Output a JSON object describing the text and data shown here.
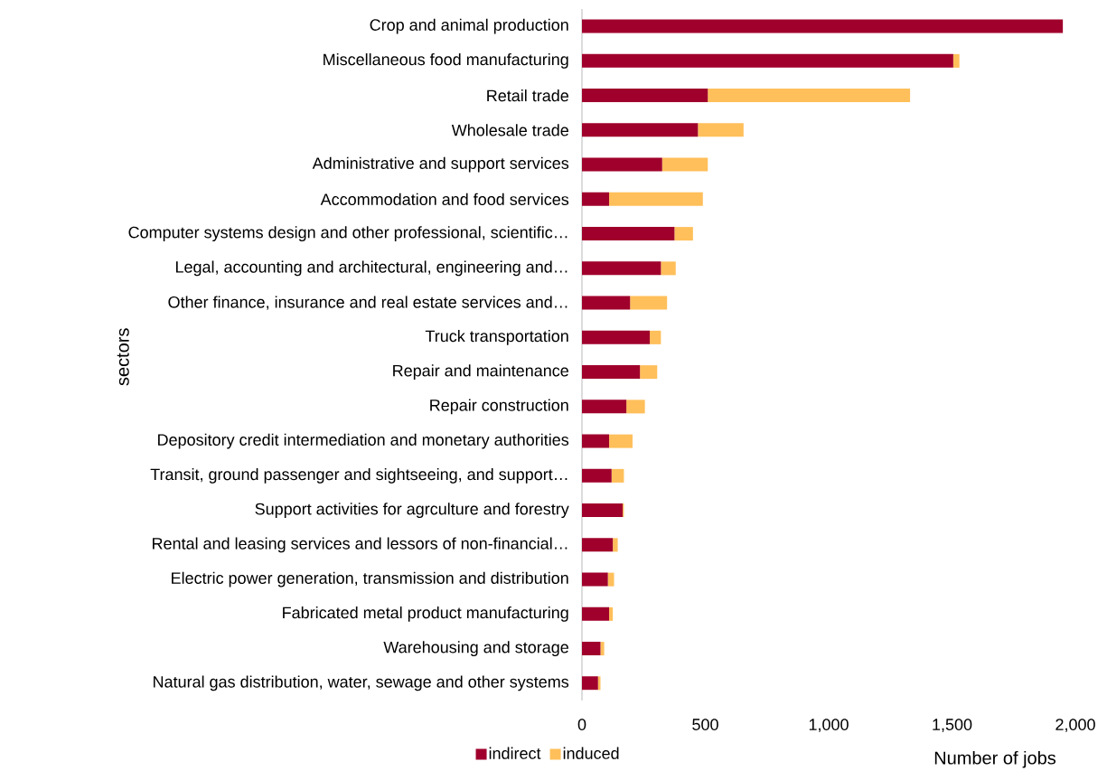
{
  "chart_data": {
    "type": "bar",
    "orientation": "horizontal",
    "stacked": true,
    "categories": [
      "Crop and animal production",
      "Miscellaneous food manufacturing",
      "Retail trade",
      "Wholesale trade",
      "Administrative and support services",
      "Accommodation and food services",
      "Computer systems design and other professional, scientific…",
      "Legal, accounting and architectural, engineering and…",
      "Other finance, insurance and real estate services and…",
      "Truck transportation",
      "Repair and maintenance",
      "Repair construction",
      "Depository credit intermediation and monetary authorities",
      "Transit, ground passenger and sightseeing, and support…",
      "Support activities for agrculture and forestry",
      "Rental and leasing services and lessors of non-financial…",
      "Electric power generation, transmission and distribution",
      "Fabricated metal product manufacturing",
      "Warehousing and storage",
      "Natural gas distribution, water, sewage and other systems"
    ],
    "series": [
      {
        "name": "indirect",
        "color": "#a0002c",
        "values": [
          1950,
          1505,
          510,
          470,
          325,
          110,
          375,
          320,
          195,
          275,
          235,
          180,
          110,
          120,
          165,
          125,
          105,
          110,
          75,
          65
        ]
      },
      {
        "name": "induced",
        "color": "#ffbf5a",
        "values": [
          null,
          25,
          820,
          185,
          185,
          380,
          75,
          60,
          150,
          45,
          70,
          75,
          95,
          50,
          5,
          20,
          25,
          15,
          15,
          10
        ]
      }
    ],
    "xlim": [
      0,
      2000
    ],
    "xticks": [
      0,
      500,
      {
        "value": 1000,
        "label": "1,000"
      },
      {
        "value": 1500,
        "label": "1,500"
      },
      {
        "value": 2000,
        "label": "2,000"
      }
    ],
    "xlabel": "Number of jobs",
    "ylabel": "sectors",
    "legend": "bottom"
  }
}
